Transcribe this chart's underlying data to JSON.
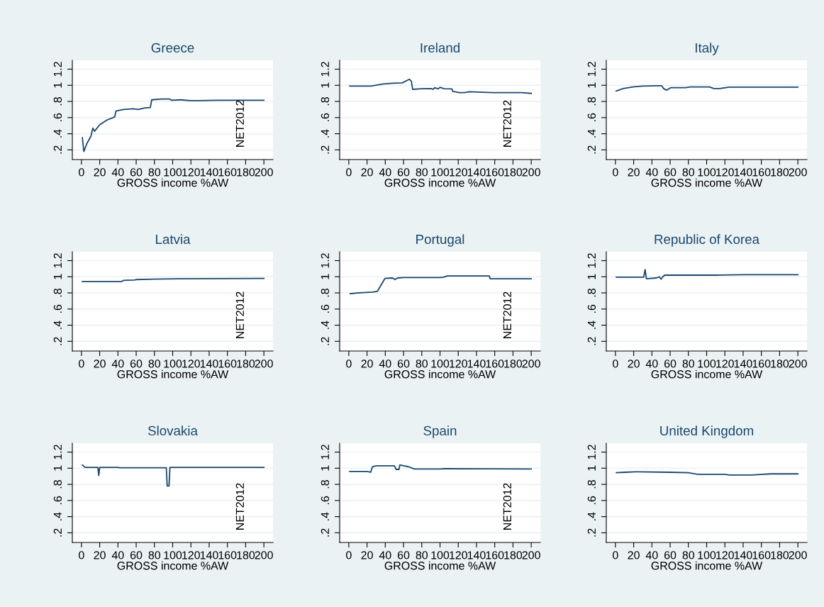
{
  "chart_data": [
    {
      "type": "line",
      "title": "Greece",
      "xlabel": "GROSS income %AW",
      "xlim": [
        -10,
        210
      ],
      "xticks": [
        0,
        20,
        40,
        60,
        80,
        100,
        120,
        140,
        160,
        180,
        200
      ],
      "ylim": [
        0.08,
        1.31
      ],
      "yticks": [
        {
          "value": 0.2,
          "label": ".2"
        },
        {
          "value": 0.4,
          "label": ".4"
        },
        {
          "value": 0.6,
          "label": ".6"
        },
        {
          "value": 0.8,
          "label": ".8"
        },
        1,
        1.2
      ],
      "grid": "y",
      "annotations": [
        "NET2012"
      ],
      "series": [
        {
          "color": "#1a476f",
          "x": [
            1,
            2.6,
            6,
            10.4,
            12.5,
            14.3,
            20,
            28,
            34.6,
            36.5,
            37.8,
            46,
            57,
            62,
            70,
            75.5,
            77,
            88,
            97,
            98.4,
            109,
            119,
            130,
            150,
            200
          ],
          "values": [
            0.35,
            0.18,
            0.28,
            0.37,
            0.47,
            0.43,
            0.51,
            0.57,
            0.6,
            0.61,
            0.68,
            0.7,
            0.71,
            0.7,
            0.72,
            0.725,
            0.82,
            0.83,
            0.83,
            0.815,
            0.82,
            0.81,
            0.81,
            0.815,
            0.815
          ]
        }
      ]
    },
    {
      "type": "line",
      "title": "Ireland",
      "xlabel": "GROSS income %AW",
      "xlim": [
        -10,
        210
      ],
      "xticks": [
        0,
        20,
        40,
        60,
        80,
        100,
        120,
        140,
        160,
        180,
        200
      ],
      "ylim": [
        0.08,
        1.31
      ],
      "yticks": [
        {
          "value": 0.2,
          "label": ".2"
        },
        {
          "value": 0.4,
          "label": ".4"
        },
        {
          "value": 0.6,
          "label": ".6"
        },
        {
          "value": 0.8,
          "label": ".8"
        },
        1,
        1.2
      ],
      "grid": "y",
      "annotations": [
        "NET2012"
      ],
      "series": [
        {
          "color": "#1a476f",
          "x": [
            1,
            24.6,
            37.7,
            48,
            58.6,
            66.5,
            68.6,
            70,
            79.6,
            90,
            92.7,
            94,
            98,
            100,
            104.5,
            113,
            114,
            121.5,
            126.7,
            132,
            158,
            189.5,
            200
          ],
          "values": [
            0.99,
            0.99,
            1.016,
            1.025,
            1.03,
            1.075,
            1.05,
            0.95,
            0.957,
            0.96,
            0.95,
            0.97,
            0.955,
            0.975,
            0.957,
            0.955,
            0.925,
            0.91,
            0.91,
            0.92,
            0.91,
            0.91,
            0.9
          ]
        }
      ]
    },
    {
      "type": "line",
      "title": "Italy",
      "xlabel": "GROSS income %AW",
      "xlim": [
        -10,
        210
      ],
      "xticks": [
        0,
        20,
        40,
        60,
        80,
        100,
        120,
        140,
        160,
        180,
        200
      ],
      "ylim": [
        0.08,
        1.31
      ],
      "yticks": [
        {
          "value": 0.2,
          "label": ".2"
        },
        {
          "value": 0.4,
          "label": ".4"
        },
        {
          "value": 0.6,
          "label": ".6"
        },
        {
          "value": 0.8,
          "label": ".8"
        },
        1,
        1.2
      ],
      "grid": "y",
      "series": [
        {
          "color": "#1a476f",
          "x": [
            0.8,
            8.6,
            19,
            29.6,
            48,
            50.6,
            52.7,
            56.4,
            60.5,
            76.8,
            82,
            103,
            108,
            114.8,
            124.5,
            200
          ],
          "values": [
            0.93,
            0.96,
            0.98,
            0.99,
            0.995,
            0.995,
            0.96,
            0.94,
            0.97,
            0.97,
            0.98,
            0.98,
            0.96,
            0.96,
            0.977,
            0.977
          ]
        }
      ]
    },
    {
      "type": "line",
      "title": "Latvia",
      "xlabel": "GROSS income %AW",
      "xlim": [
        -10,
        210
      ],
      "xticks": [
        0,
        20,
        40,
        60,
        80,
        100,
        120,
        140,
        160,
        180,
        200
      ],
      "ylim": [
        0.08,
        1.31
      ],
      "yticks": [
        {
          "value": 0.2,
          "label": ".2"
        },
        {
          "value": 0.4,
          "label": ".4"
        },
        {
          "value": 0.6,
          "label": ".6"
        },
        {
          "value": 0.8,
          "label": ".8"
        },
        1,
        1.2
      ],
      "grid": "y",
      "annotations": [
        "NET2012"
      ],
      "series": [
        {
          "color": "#1a476f",
          "x": [
            1,
            44,
            46,
            58,
            60,
            80,
            105,
            200
          ],
          "values": [
            0.94,
            0.94,
            0.955,
            0.96,
            0.965,
            0.97,
            0.975,
            0.98
          ]
        }
      ]
    },
    {
      "type": "line",
      "title": "Portugal",
      "xlabel": "GROSS income %AW",
      "xlim": [
        -10,
        210
      ],
      "xticks": [
        0,
        20,
        40,
        60,
        80,
        100,
        120,
        140,
        160,
        180,
        200
      ],
      "ylim": [
        0.08,
        1.31
      ],
      "yticks": [
        {
          "value": 0.2,
          "label": ".2"
        },
        {
          "value": 0.4,
          "label": ".4"
        },
        {
          "value": 0.6,
          "label": ".6"
        },
        {
          "value": 0.8,
          "label": ".8"
        },
        1,
        1.2
      ],
      "grid": "y",
      "annotations": [
        "NET2012"
      ],
      "series": [
        {
          "color": "#1a476f",
          "x": [
            1.6,
            9.4,
            26,
            31.4,
            39.7,
            48,
            50.7,
            53.4,
            60,
            100,
            104,
            108,
            154,
            155,
            200
          ],
          "values": [
            0.79,
            0.8,
            0.81,
            0.82,
            0.98,
            0.985,
            0.965,
            0.985,
            0.99,
            0.99,
            0.995,
            1.01,
            1.01,
            0.975,
            0.975
          ]
        }
      ]
    },
    {
      "type": "line",
      "title": "Republic of Korea",
      "xlabel": "GROSS income %AW",
      "xlim": [
        -10,
        210
      ],
      "xticks": [
        0,
        20,
        40,
        60,
        80,
        100,
        120,
        140,
        160,
        180,
        200
      ],
      "ylim": [
        0.08,
        1.31
      ],
      "yticks": [
        {
          "value": 0.2,
          "label": ".2"
        },
        {
          "value": 0.4,
          "label": ".4"
        },
        {
          "value": 0.6,
          "label": ".6"
        },
        {
          "value": 0.8,
          "label": ".8"
        },
        1,
        1.2
      ],
      "grid": "y",
      "series": [
        {
          "color": "#1a476f",
          "x": [
            1,
            31,
            32.5,
            34,
            45,
            48,
            50,
            52,
            54,
            110,
            140,
            200
          ],
          "values": [
            0.995,
            0.995,
            1.09,
            0.975,
            0.985,
            1.0,
            0.97,
            1.0,
            1.02,
            1.02,
            1.025,
            1.025
          ]
        }
      ]
    },
    {
      "type": "line",
      "title": "Slovakia",
      "xlabel": "GROSS income %AW",
      "xlim": [
        -10,
        210
      ],
      "xticks": [
        0,
        20,
        40,
        60,
        80,
        100,
        120,
        140,
        160,
        180,
        200
      ],
      "ylim": [
        0.08,
        1.31
      ],
      "yticks": [
        {
          "value": 0.2,
          "label": ".2"
        },
        {
          "value": 0.4,
          "label": ".4"
        },
        {
          "value": 0.6,
          "label": ".6"
        },
        {
          "value": 0.8,
          "label": ".8"
        },
        1,
        1.2
      ],
      "grid": "y",
      "annotations": [
        "NET2012"
      ],
      "series": [
        {
          "color": "#1a476f",
          "x": [
            1,
            4,
            18,
            19,
            20,
            40,
            42,
            93,
            94,
            96,
            97,
            200
          ],
          "values": [
            1.04,
            1.01,
            1.01,
            0.91,
            1.01,
            1.01,
            1.005,
            1.005,
            0.78,
            0.78,
            1.01,
            1.01
          ]
        }
      ]
    },
    {
      "type": "line",
      "title": "Spain",
      "xlabel": "GROSS income %AW",
      "xlim": [
        -10,
        210
      ],
      "xticks": [
        0,
        20,
        40,
        60,
        80,
        100,
        120,
        140,
        160,
        180,
        200
      ],
      "ylim": [
        0.08,
        1.31
      ],
      "yticks": [
        {
          "value": 0.2,
          "label": ".2"
        },
        {
          "value": 0.4,
          "label": ".4"
        },
        {
          "value": 0.6,
          "label": ".6"
        },
        {
          "value": 0.8,
          "label": ".8"
        },
        1,
        1.2
      ],
      "grid": "y",
      "annotations": [
        "NET2012"
      ],
      "series": [
        {
          "color": "#1a476f",
          "x": [
            1,
            20,
            24,
            26,
            30,
            50,
            52,
            55,
            56,
            60,
            65,
            72,
            100,
            105,
            200
          ],
          "values": [
            0.96,
            0.96,
            0.95,
            1.02,
            1.03,
            1.03,
            0.985,
            0.985,
            1.04,
            1.03,
            1.02,
            0.99,
            0.99,
            0.995,
            0.99
          ]
        }
      ]
    },
    {
      "type": "line",
      "title": "United Kingdom",
      "xlabel": "GROSS income %AW",
      "xlim": [
        -10,
        210
      ],
      "xticks": [
        0,
        20,
        40,
        60,
        80,
        100,
        120,
        140,
        160,
        180,
        200
      ],
      "ylim": [
        0.08,
        1.31
      ],
      "yticks": [
        {
          "value": 0.2,
          "label": ".2"
        },
        {
          "value": 0.4,
          "label": ".4"
        },
        {
          "value": 0.6,
          "label": ".6"
        },
        {
          "value": 0.8,
          "label": ".8"
        },
        1,
        1.2
      ],
      "grid": "y",
      "series": [
        {
          "color": "#1a476f",
          "x": [
            1,
            10,
            22,
            25,
            60,
            80,
            90,
            120,
            125,
            150,
            155,
            170,
            200
          ],
          "values": [
            0.945,
            0.95,
            0.955,
            0.955,
            0.95,
            0.945,
            0.925,
            0.925,
            0.915,
            0.915,
            0.92,
            0.93,
            0.93
          ]
        }
      ]
    }
  ]
}
